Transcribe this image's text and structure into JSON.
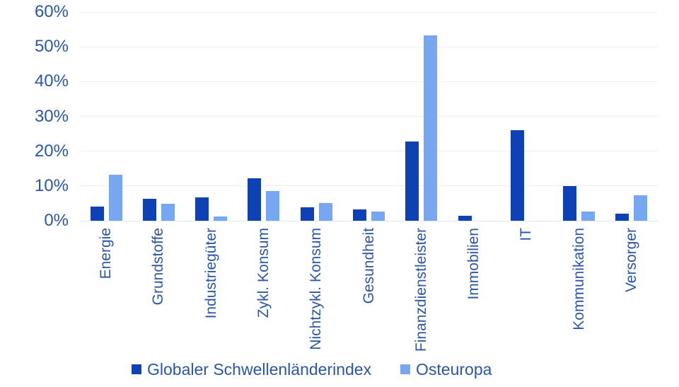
{
  "chart_data": {
    "type": "bar",
    "title": "",
    "xlabel": "",
    "ylabel": "",
    "ylim": [
      0,
      60
    ],
    "grid": true,
    "legend_position": "bottom",
    "y_tick_labels": [
      "0%",
      "10%",
      "20%",
      "30%",
      "40%",
      "50%",
      "60%"
    ],
    "categories": [
      "Energie",
      "Grundstoffe",
      "Industriegüter",
      "Zykl. Konsum",
      "Nichtzykl. Konsum",
      "Gesundheit",
      "Finanzdienstleister",
      "Immobilien",
      "IT",
      "Kommunikation",
      "Versorger"
    ],
    "series": [
      {
        "name": "Globaler Schwellenländerindex",
        "color": "#0d41b4",
        "values": [
          4.1,
          6.4,
          6.8,
          12.2,
          3.9,
          3.3,
          22.7,
          1.5,
          26.0,
          9.9,
          2.1
        ]
      },
      {
        "name": "Osteuropa",
        "color": "#76a7f0",
        "values": [
          13.2,
          4.8,
          1.3,
          8.6,
          5.1,
          2.6,
          53.3,
          0,
          0,
          2.7,
          7.3
        ]
      }
    ]
  },
  "colors": {
    "label_text": "#2a56a9",
    "gridline": "#f0efec",
    "axis_baseline": "#dde6f2",
    "background": "#ffffff"
  },
  "legend": {
    "items": [
      {
        "label": "Globaler Schwellenländerindex",
        "swatch": "dark-blue"
      },
      {
        "label": "Osteuropa",
        "swatch": "light-blue"
      }
    ]
  }
}
